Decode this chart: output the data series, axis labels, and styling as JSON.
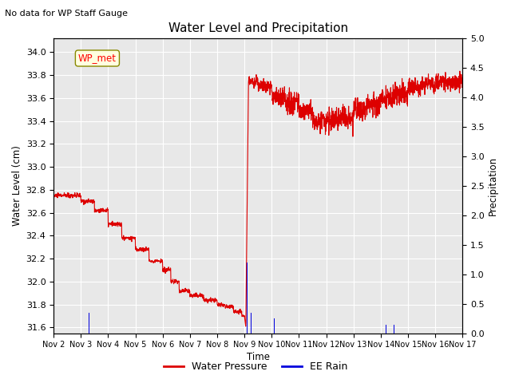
{
  "title": "Water Level and Precipitation",
  "subtitle": "No data for WP Staff Gauge",
  "xlabel": "Time",
  "ylabel_left": "Water Level (cm)",
  "ylabel_right": "Precipitation",
  "legend_label_red": "Water Pressure",
  "legend_label_blue": "EE Rain",
  "wp_met_label": "WP_met",
  "ylim_left": [
    31.55,
    34.12
  ],
  "ylim_right": [
    0.0,
    5.0
  ],
  "yticks_left": [
    31.6,
    31.8,
    32.0,
    32.2,
    32.4,
    32.6,
    32.8,
    33.0,
    33.2,
    33.4,
    33.6,
    33.8,
    34.0
  ],
  "yticks_right": [
    0.0,
    0.5,
    1.0,
    1.5,
    2.0,
    2.5,
    3.0,
    3.5,
    4.0,
    4.5,
    5.0
  ],
  "xtick_labels": [
    "Nov 2",
    "Nov 3",
    "Nov 4",
    "Nov 5",
    "Nov 6",
    "Nov 7",
    "Nov 8",
    "Nov 9",
    "Nov 10",
    "Nov 11",
    "Nov 12",
    "Nov 13",
    "Nov 14",
    "Nov 15",
    "Nov 16",
    "Nov 17"
  ],
  "background_color": "#e8e8e8",
  "grid_color": "#ffffff",
  "line_color_red": "#dd0000",
  "line_color_blue": "#0000dd",
  "fig_width": 6.4,
  "fig_height": 4.8,
  "dpi": 100
}
